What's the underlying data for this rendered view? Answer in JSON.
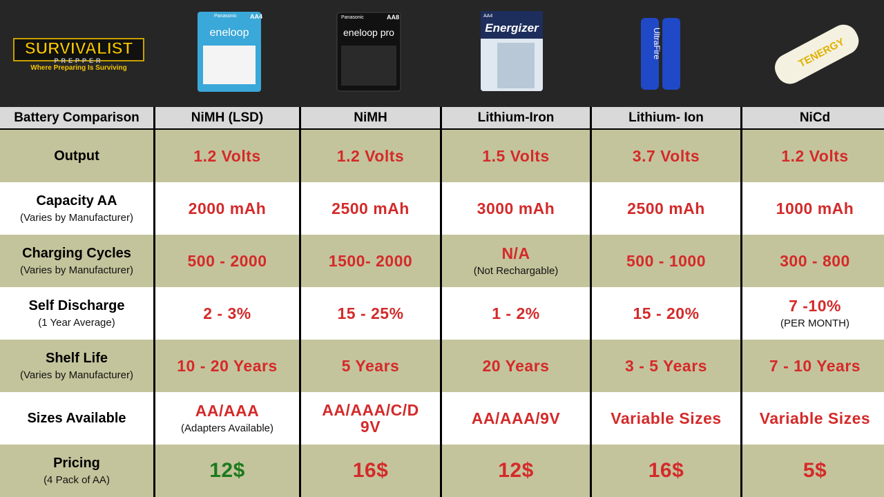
{
  "logo": {
    "title": "SURVIVALIST",
    "subtitle": "PREPPER",
    "tagline": "Where Preparing Is Surviving"
  },
  "products": [
    {
      "brand": "Panasonic",
      "name": "eneloop",
      "pack": "AA4"
    },
    {
      "brand": "Panasonic",
      "name": "eneloop pro",
      "pack": "AA8"
    },
    {
      "brand": "Energizer",
      "pack": "AA4"
    },
    {
      "brand": "UltraFire"
    },
    {
      "brand": "TENERGY"
    }
  ],
  "table": {
    "header": [
      "Battery Comparison",
      "NiMH (LSD)",
      "NiMH",
      "Lithium-Iron",
      "Lithium- Ion",
      "NiCd"
    ],
    "rows": [
      {
        "label": "Output",
        "cells": [
          {
            "value": "1.2 Volts"
          },
          {
            "value": "1.2 Volts"
          },
          {
            "value": "1.5 Volts"
          },
          {
            "value": "3.7 Volts"
          },
          {
            "value": "1.2 Volts"
          }
        ]
      },
      {
        "label": "Capacity AA",
        "note": "(Varies by Manufacturer)",
        "cells": [
          {
            "value": "2000 mAh"
          },
          {
            "value": "2500 mAh"
          },
          {
            "value": "3000 mAh"
          },
          {
            "value": "2500 mAh"
          },
          {
            "value": "1000 mAh"
          }
        ]
      },
      {
        "label": "Charging Cycles",
        "note": "(Varies by Manufacturer)",
        "cells": [
          {
            "value": "500 - 2000"
          },
          {
            "value": "1500- 2000"
          },
          {
            "value": "N/A",
            "note": "(Not Rechargable)"
          },
          {
            "value": "500 - 1000"
          },
          {
            "value": "300 - 800"
          }
        ]
      },
      {
        "label": "Self Discharge",
        "note": "(1 Year Average)",
        "cells": [
          {
            "value": "2 - 3%"
          },
          {
            "value": "15 - 25%"
          },
          {
            "value": "1 - 2%"
          },
          {
            "value": "15 - 20%"
          },
          {
            "value": "7 -10%",
            "note": "(PER MONTH)"
          }
        ]
      },
      {
        "label": "Shelf Life",
        "note": "(Varies by Manufacturer)",
        "cells": [
          {
            "value": "10 - 20 Years"
          },
          {
            "value": "5 Years"
          },
          {
            "value": "20 Years"
          },
          {
            "value": "3 - 5 Years"
          },
          {
            "value": "7 - 10 Years"
          }
        ]
      },
      {
        "label": "Sizes Available",
        "cells": [
          {
            "value": "AA/AAA",
            "note": "(Adapters Available)"
          },
          {
            "value": "AA/AAA/C/D\n9V"
          },
          {
            "value": "AA/AAA/9V"
          },
          {
            "value": "Variable Sizes"
          },
          {
            "value": "Variable Sizes"
          }
        ]
      },
      {
        "label": "Pricing",
        "note": "(4 Pack of AA)",
        "cells": [
          {
            "value": "12$"
          },
          {
            "value": "16$"
          },
          {
            "value": "12$"
          },
          {
            "value": "16$"
          },
          {
            "value": "5$"
          }
        ]
      }
    ]
  }
}
